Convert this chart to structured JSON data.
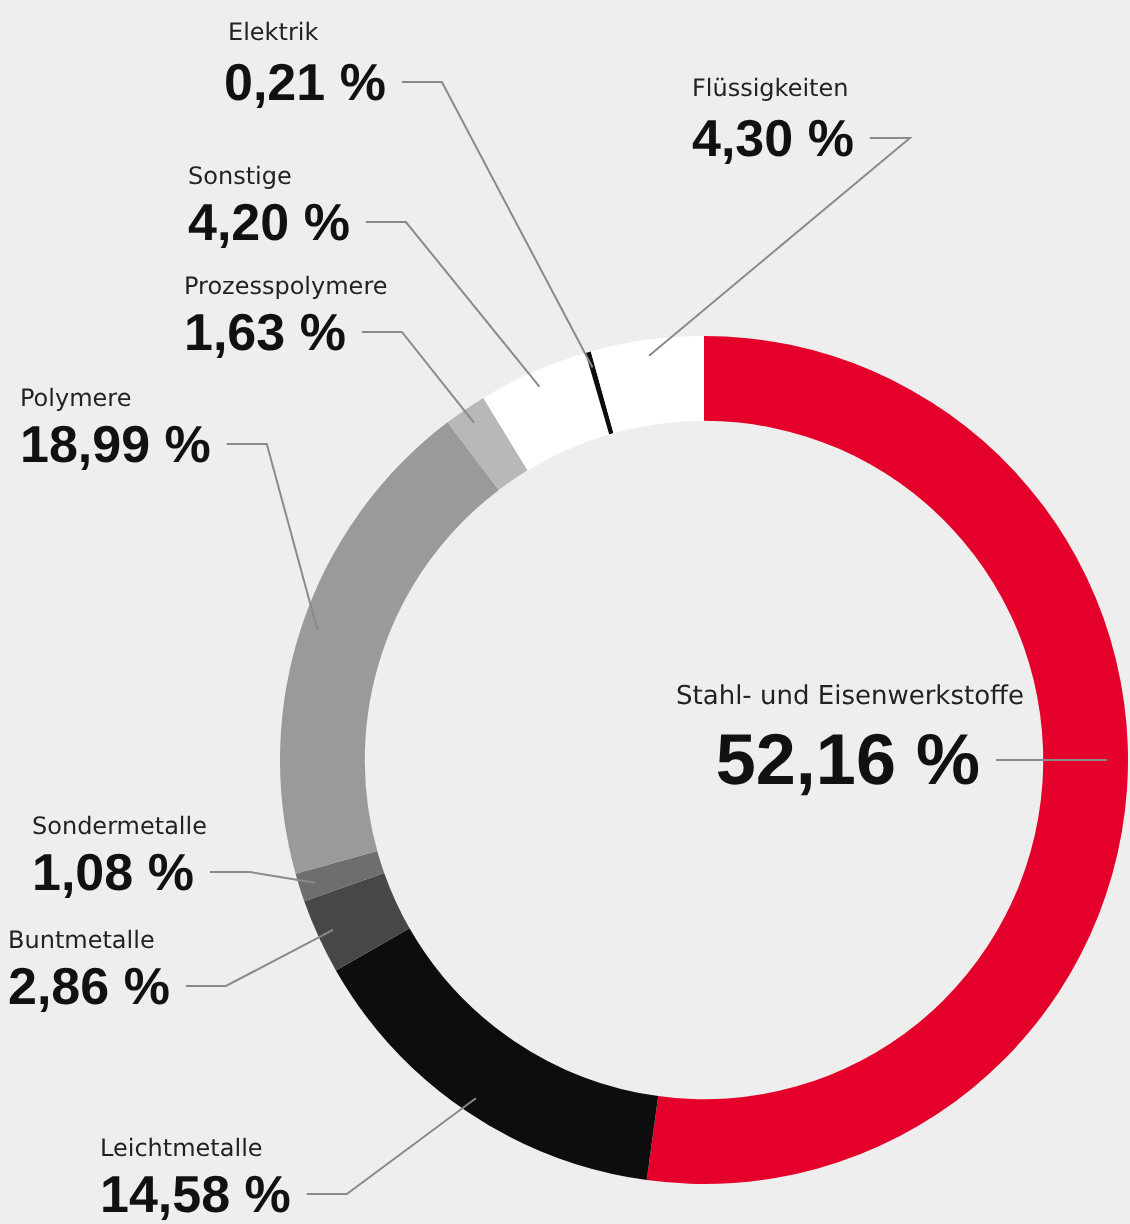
{
  "chart_data": {
    "type": "donut",
    "categories": [
      "Stahl- und Eisenwerkstoffe",
      "Leichtmetalle",
      "Buntmetalle",
      "Sondermetalle",
      "Polymere",
      "Prozesspolymere",
      "Sonstige",
      "Elektrik",
      "Flüssigkeiten"
    ],
    "values": [
      52.16,
      14.58,
      2.86,
      1.08,
      18.99,
      1.63,
      4.2,
      0.21,
      4.3
    ],
    "value_labels": [
      "52,16 %",
      "14,58 %",
      "2,86 %",
      "1,08 %",
      "18,99 %",
      "1,63 %",
      "4,20 %",
      "0,21 %",
      "4,30 %"
    ],
    "colors": [
      "#e4002b",
      "#0d0d0d",
      "#474747",
      "#6e6e6e",
      "#9a9a9a",
      "#b8b8b8",
      "#ffffff",
      "#0d0d0d",
      "#ffffff"
    ],
    "legend": false
  }
}
